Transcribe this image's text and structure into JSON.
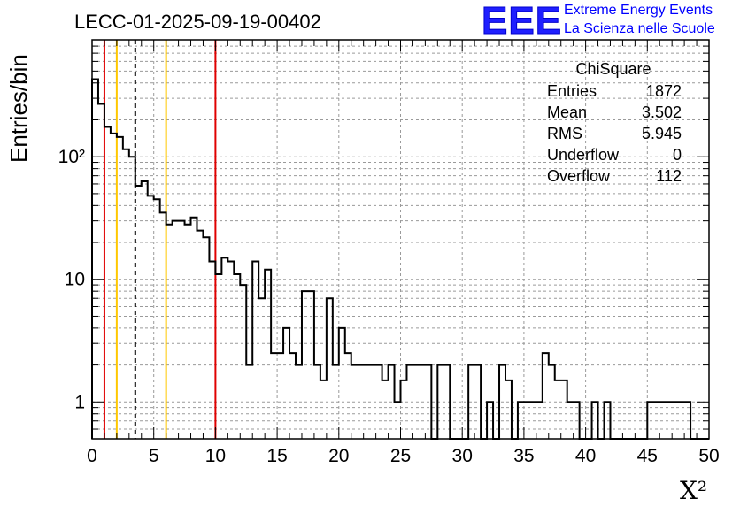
{
  "header": {
    "title": "LECC-01-2025-09-19-00402",
    "logo_text": "EEE",
    "logo_line1": "Extreme Energy Events",
    "logo_line2": "La Scienza nelle Scuole"
  },
  "stats": {
    "title": "ChiSquare",
    "rows": [
      {
        "label": "Entries",
        "value": "1872"
      },
      {
        "label": "Mean",
        "value": "3.502"
      },
      {
        "label": "RMS",
        "value": "5.945"
      },
      {
        "label": "Underflow",
        "value": "0"
      },
      {
        "label": "Overflow",
        "value": "112"
      }
    ]
  },
  "chart_data": {
    "type": "histogram",
    "title": "LECC-01-2025-09-19-00402",
    "xlabel": "X²",
    "ylabel": "Entries/bin",
    "xlim": [
      0,
      50
    ],
    "ylim": [
      0.5,
      900
    ],
    "yscale": "log",
    "bin_width": 0.5,
    "x_ticks": [
      0,
      5,
      10,
      15,
      20,
      25,
      30,
      35,
      40,
      45,
      50
    ],
    "y_ticks": [
      {
        "value": 1,
        "label": "1"
      },
      {
        "value": 10,
        "label": "10"
      },
      {
        "value": 100,
        "label": "10²"
      }
    ],
    "grid": true,
    "bin_counts": [
      430,
      270,
      175,
      155,
      145,
      115,
      100,
      58,
      63,
      48,
      45,
      35,
      28,
      30,
      30,
      28,
      32,
      25,
      22,
      14,
      11,
      15,
      14,
      11,
      9,
      2,
      14,
      7,
      12,
      2.5,
      2.5,
      4,
      2.5,
      2,
      8,
      8,
      2,
      1.5,
      7,
      2,
      4,
      2.5,
      2,
      2,
      2,
      2,
      2,
      1.5,
      2,
      1,
      1.5,
      2,
      2,
      2,
      2,
      0.5,
      2,
      2,
      0.5,
      0.5,
      0.5,
      2,
      2,
      0.5,
      1,
      0.5,
      2,
      1.5,
      0.5,
      1,
      1,
      1,
      1,
      2.5,
      2,
      1.5,
      1.5,
      1,
      1,
      0.5,
      0.5,
      1,
      0.5,
      1,
      0.5,
      0.5,
      0.5,
      0.5,
      0.5,
      0.5,
      1,
      1,
      1,
      1,
      1,
      1,
      1,
      0.5,
      0.5,
      0.5
    ],
    "vertical_lines": [
      {
        "x": 1.0,
        "color": "#e00000",
        "style": "solid"
      },
      {
        "x": 2.0,
        "color": "#ffc800",
        "style": "solid"
      },
      {
        "x": 3.5,
        "color": "#000000",
        "style": "dashed"
      },
      {
        "x": 6.0,
        "color": "#ffc800",
        "style": "solid"
      },
      {
        "x": 10.0,
        "color": "#e00000",
        "style": "solid"
      }
    ],
    "stats_box": {
      "name": "ChiSquare",
      "Entries": 1872,
      "Mean": 3.502,
      "RMS": 5.945,
      "Underflow": 0,
      "Overflow": 112
    }
  }
}
